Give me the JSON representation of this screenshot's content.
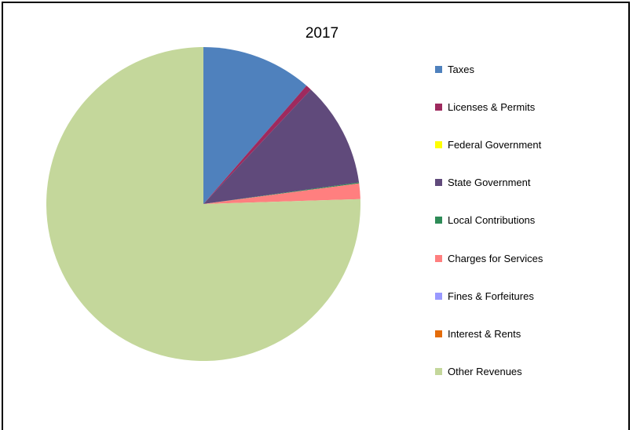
{
  "chart_data": {
    "type": "pie",
    "title": "2017",
    "categories": [
      "Taxes",
      "Licenses & Permits",
      "Federal Government",
      "State Government",
      "Local Contributions",
      "Charges for Services",
      "Fines & Forfeitures",
      "Interest & Rents",
      "Other Revenues"
    ],
    "values": [
      11.4,
      0.6,
      0.0,
      10.8,
      0.1,
      1.6,
      0.0,
      0.0,
      75.5
    ],
    "unit": "percent of total (estimated)",
    "colors": [
      "#4F81BD",
      "#9E2A5E",
      "#FFFF00",
      "#604A7B",
      "#2E8B57",
      "#FF7F7F",
      "#9999FF",
      "#E46C0A",
      "#C4D79B"
    ],
    "start_angle": "12 o'clock",
    "direction": "clockwise",
    "legend_position": "right"
  }
}
